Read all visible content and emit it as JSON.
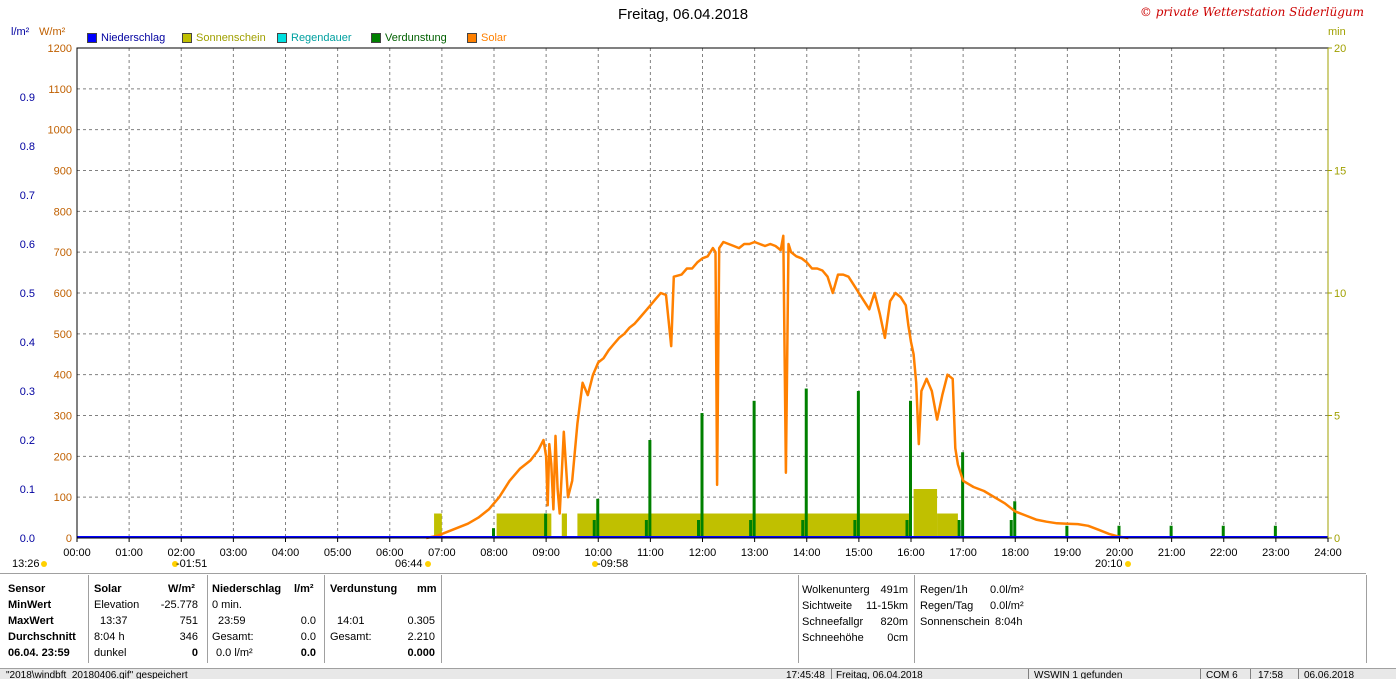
{
  "title": "Freitag, 06.04.2018",
  "copyright": "© private Wetterstation Süderlügum",
  "left_axis_unit_1": "l/m²",
  "left_axis_unit_2": "W/m²",
  "right_axis_unit": "min",
  "colors": {
    "niederschlag": "#0000ff",
    "sonnenschein": "#c0c000",
    "regendauer": "#00e0e0",
    "verdunstung": "#008000",
    "solar": "#ff8000",
    "precip_axis": "#0000a0",
    "solar_axis": "#c06000",
    "sun_axis": "#a0a000",
    "grid": "#808080",
    "copyright": "#cc0000"
  },
  "legend": [
    {
      "label": "Niederschlag",
      "color": "#0000ff"
    },
    {
      "label": "Sonnenschein",
      "color": "#c0c000"
    },
    {
      "label": "Regendauer",
      "color": "#00e0e0"
    },
    {
      "label": "Verdunstung",
      "color": "#008000"
    },
    {
      "label": "Solar",
      "color": "#ff8000"
    }
  ],
  "chart_data": {
    "type": "line",
    "x_ticks": [
      "00:00",
      "01:00",
      "02:00",
      "03:00",
      "04:00",
      "05:00",
      "06:00",
      "07:00",
      "08:00",
      "09:00",
      "10:00",
      "11:00",
      "12:00",
      "13:00",
      "14:00",
      "15:00",
      "16:00",
      "17:00",
      "18:00",
      "19:00",
      "20:00",
      "21:00",
      "22:00",
      "23:00",
      "24:00"
    ],
    "xlim": [
      0,
      24
    ],
    "solar_axis": {
      "ylim": [
        0,
        1200
      ],
      "ticks": [
        "0",
        "100",
        "200",
        "300",
        "400",
        "500",
        "600",
        "700",
        "800",
        "900",
        "1000",
        "1100",
        "1200"
      ]
    },
    "precip_axis": {
      "ylim": [
        0,
        1.0
      ],
      "ticks": [
        "0.0",
        "0.1",
        "0.2",
        "0.3",
        "0.4",
        "0.5",
        "0.6",
        "0.7",
        "0.8",
        "0.9"
      ]
    },
    "sun_axis": {
      "ylim": [
        0,
        20
      ],
      "ticks": [
        "0",
        "5",
        "10",
        "15",
        "20"
      ]
    },
    "grid": true,
    "legend_position": "top-left",
    "series": [
      {
        "name": "Solar",
        "unit": "W/m²",
        "points": [
          [
            6.7,
            0
          ],
          [
            6.9,
            5
          ],
          [
            7.1,
            15
          ],
          [
            7.3,
            25
          ],
          [
            7.5,
            35
          ],
          [
            7.7,
            50
          ],
          [
            7.9,
            70
          ],
          [
            8.1,
            100
          ],
          [
            8.3,
            140
          ],
          [
            8.5,
            170
          ],
          [
            8.7,
            190
          ],
          [
            8.85,
            215
          ],
          [
            8.95,
            240
          ],
          [
            9.0,
            200
          ],
          [
            9.03,
            80
          ],
          [
            9.06,
            230
          ],
          [
            9.1,
            180
          ],
          [
            9.14,
            70
          ],
          [
            9.18,
            250
          ],
          [
            9.22,
            120
          ],
          [
            9.26,
            60
          ],
          [
            9.3,
            160
          ],
          [
            9.34,
            260
          ],
          [
            9.38,
            180
          ],
          [
            9.42,
            100
          ],
          [
            9.5,
            140
          ],
          [
            9.6,
            280
          ],
          [
            9.7,
            380
          ],
          [
            9.8,
            350
          ],
          [
            9.9,
            400
          ],
          [
            10.0,
            430
          ],
          [
            10.1,
            440
          ],
          [
            10.2,
            460
          ],
          [
            10.3,
            475
          ],
          [
            10.4,
            490
          ],
          [
            10.5,
            500
          ],
          [
            10.6,
            515
          ],
          [
            10.7,
            525
          ],
          [
            10.8,
            540
          ],
          [
            10.9,
            555
          ],
          [
            11.0,
            570
          ],
          [
            11.1,
            585
          ],
          [
            11.2,
            600
          ],
          [
            11.3,
            595
          ],
          [
            11.4,
            470
          ],
          [
            11.45,
            640
          ],
          [
            11.6,
            645
          ],
          [
            11.7,
            660
          ],
          [
            11.8,
            660
          ],
          [
            11.9,
            675
          ],
          [
            12.0,
            685
          ],
          [
            12.1,
            690
          ],
          [
            12.2,
            710
          ],
          [
            12.25,
            700
          ],
          [
            12.28,
            130
          ],
          [
            12.32,
            710
          ],
          [
            12.4,
            725
          ],
          [
            12.5,
            720
          ],
          [
            12.6,
            715
          ],
          [
            12.7,
            710
          ],
          [
            12.8,
            720
          ],
          [
            12.9,
            720
          ],
          [
            13.0,
            725
          ],
          [
            13.1,
            720
          ],
          [
            13.2,
            715
          ],
          [
            13.3,
            720
          ],
          [
            13.4,
            715
          ],
          [
            13.5,
            705
          ],
          [
            13.55,
            740
          ],
          [
            13.6,
            160
          ],
          [
            13.65,
            720
          ],
          [
            13.7,
            700
          ],
          [
            13.8,
            690
          ],
          [
            13.9,
            685
          ],
          [
            14.0,
            675
          ],
          [
            14.1,
            660
          ],
          [
            14.2,
            660
          ],
          [
            14.3,
            655
          ],
          [
            14.4,
            640
          ],
          [
            14.5,
            600
          ],
          [
            14.6,
            645
          ],
          [
            14.7,
            645
          ],
          [
            14.8,
            640
          ],
          [
            14.9,
            620
          ],
          [
            15.0,
            600
          ],
          [
            15.1,
            580
          ],
          [
            15.2,
            560
          ],
          [
            15.3,
            600
          ],
          [
            15.4,
            550
          ],
          [
            15.5,
            490
          ],
          [
            15.6,
            580
          ],
          [
            15.7,
            600
          ],
          [
            15.8,
            590
          ],
          [
            15.9,
            570
          ],
          [
            15.95,
            520
          ],
          [
            16.0,
            480
          ],
          [
            16.05,
            450
          ],
          [
            16.1,
            380
          ],
          [
            16.15,
            230
          ],
          [
            16.2,
            360
          ],
          [
            16.3,
            390
          ],
          [
            16.4,
            360
          ],
          [
            16.5,
            290
          ],
          [
            16.6,
            350
          ],
          [
            16.7,
            400
          ],
          [
            16.8,
            390
          ],
          [
            16.85,
            220
          ],
          [
            16.9,
            180
          ],
          [
            17.0,
            140
          ],
          [
            17.2,
            125
          ],
          [
            17.4,
            115
          ],
          [
            17.6,
            100
          ],
          [
            17.8,
            85
          ],
          [
            18.0,
            65
          ],
          [
            18.2,
            55
          ],
          [
            18.4,
            45
          ],
          [
            18.6,
            40
          ],
          [
            18.8,
            36
          ],
          [
            19.0,
            35
          ],
          [
            19.2,
            34
          ],
          [
            19.4,
            30
          ],
          [
            19.6,
            20
          ],
          [
            19.8,
            10
          ],
          [
            20.0,
            3
          ],
          [
            20.17,
            0
          ]
        ]
      },
      {
        "name": "Sonnenschein",
        "unit": "min",
        "bars": [
          [
            6.85,
            7.0,
            1
          ],
          [
            7.0,
            8.0,
            0
          ],
          [
            8.05,
            9.1,
            1
          ],
          [
            9.3,
            9.4,
            1
          ],
          [
            9.6,
            16.0,
            1
          ],
          [
            16.05,
            16.5,
            2
          ],
          [
            16.5,
            16.9,
            1
          ]
        ]
      },
      {
        "name": "Verdunstung",
        "unit": "mm",
        "bars": [
          [
            8.0,
            0.02
          ],
          [
            9.0,
            0.05
          ],
          [
            10.0,
            0.08
          ],
          [
            11.0,
            0.2
          ],
          [
            12.0,
            0.255
          ],
          [
            13.0,
            0.28
          ],
          [
            14.0,
            0.305
          ],
          [
            15.0,
            0.3
          ],
          [
            16.0,
            0.28
          ],
          [
            17.0,
            0.175
          ],
          [
            18.0,
            0.075
          ],
          [
            19.0,
            0.025
          ],
          [
            20.0,
            0.025
          ],
          [
            21.0,
            0.025
          ],
          [
            22.0,
            0.025
          ],
          [
            23.0,
            0.025
          ]
        ]
      },
      {
        "name": "Niederschlag",
        "unit": "l/m²",
        "points": [
          [
            0,
            0
          ],
          [
            24,
            0
          ]
        ]
      }
    ]
  },
  "markers": {
    "left_time": "13:26",
    "min_time": "-01:51",
    "sunrise": "06:44",
    "max_time": "-09:58",
    "sunset": "20:10"
  },
  "table": {
    "sensor": {
      "header": "Sensor",
      "min": "MinWert",
      "max": "MaxWert",
      "avg": "Durchschnitt",
      "date": "06.04. 23:59"
    },
    "solar": {
      "header": "Solar",
      "unit": "W/m²",
      "r1_label": "Elevation",
      "r1_val": "-25.778",
      "r2_label": "13:37",
      "r2_val": "751",
      "r3_label": "8:04 h",
      "r3_val": "346",
      "r4_label": "dunkel",
      "r4_val": "0"
    },
    "niederschlag": {
      "header": "Niederschlag",
      "unit": "l/m²",
      "r1_label": "0 min.",
      "r2_label": "23:59",
      "r2_val": "0.0",
      "r3_label": "Gesamt:",
      "r3_val": "0.0",
      "r4_label": "0.0 l/m²",
      "r4_val": "0.0"
    },
    "verdunstung": {
      "header": "Verdunstung",
      "unit": "mm",
      "r2_label": "14:01",
      "r2_val": "0.305",
      "r3_label": "Gesamt:",
      "r3_val": "2.210",
      "r4_val": "0.000"
    },
    "weather1": {
      "l1": "Wolkenunterg",
      "v1": "491m",
      "l2": "Sichtweite",
      "v2": "11-15km",
      "l3": "Schneefallgr",
      "v3": "820m",
      "l4": "Schneehöhe",
      "v4": "0cm"
    },
    "weather2": {
      "l1": "Regen/1h",
      "v1": "0.0l/m²",
      "l2": "Regen/Tag",
      "v2": "0.0l/m²",
      "l3": "Sonnenschein",
      "v3": "8:04h"
    }
  },
  "status_bar": {
    "file": "\"2018\\windbft_20180406.gif\" gespeichert",
    "time1": "17:45:48",
    "date1": "Freitag, 06.04.2018",
    "wswin": "WSWIN 1 gefunden",
    "com": "COM 6",
    "time2": "17:58",
    "date2": "06.06.2018"
  }
}
